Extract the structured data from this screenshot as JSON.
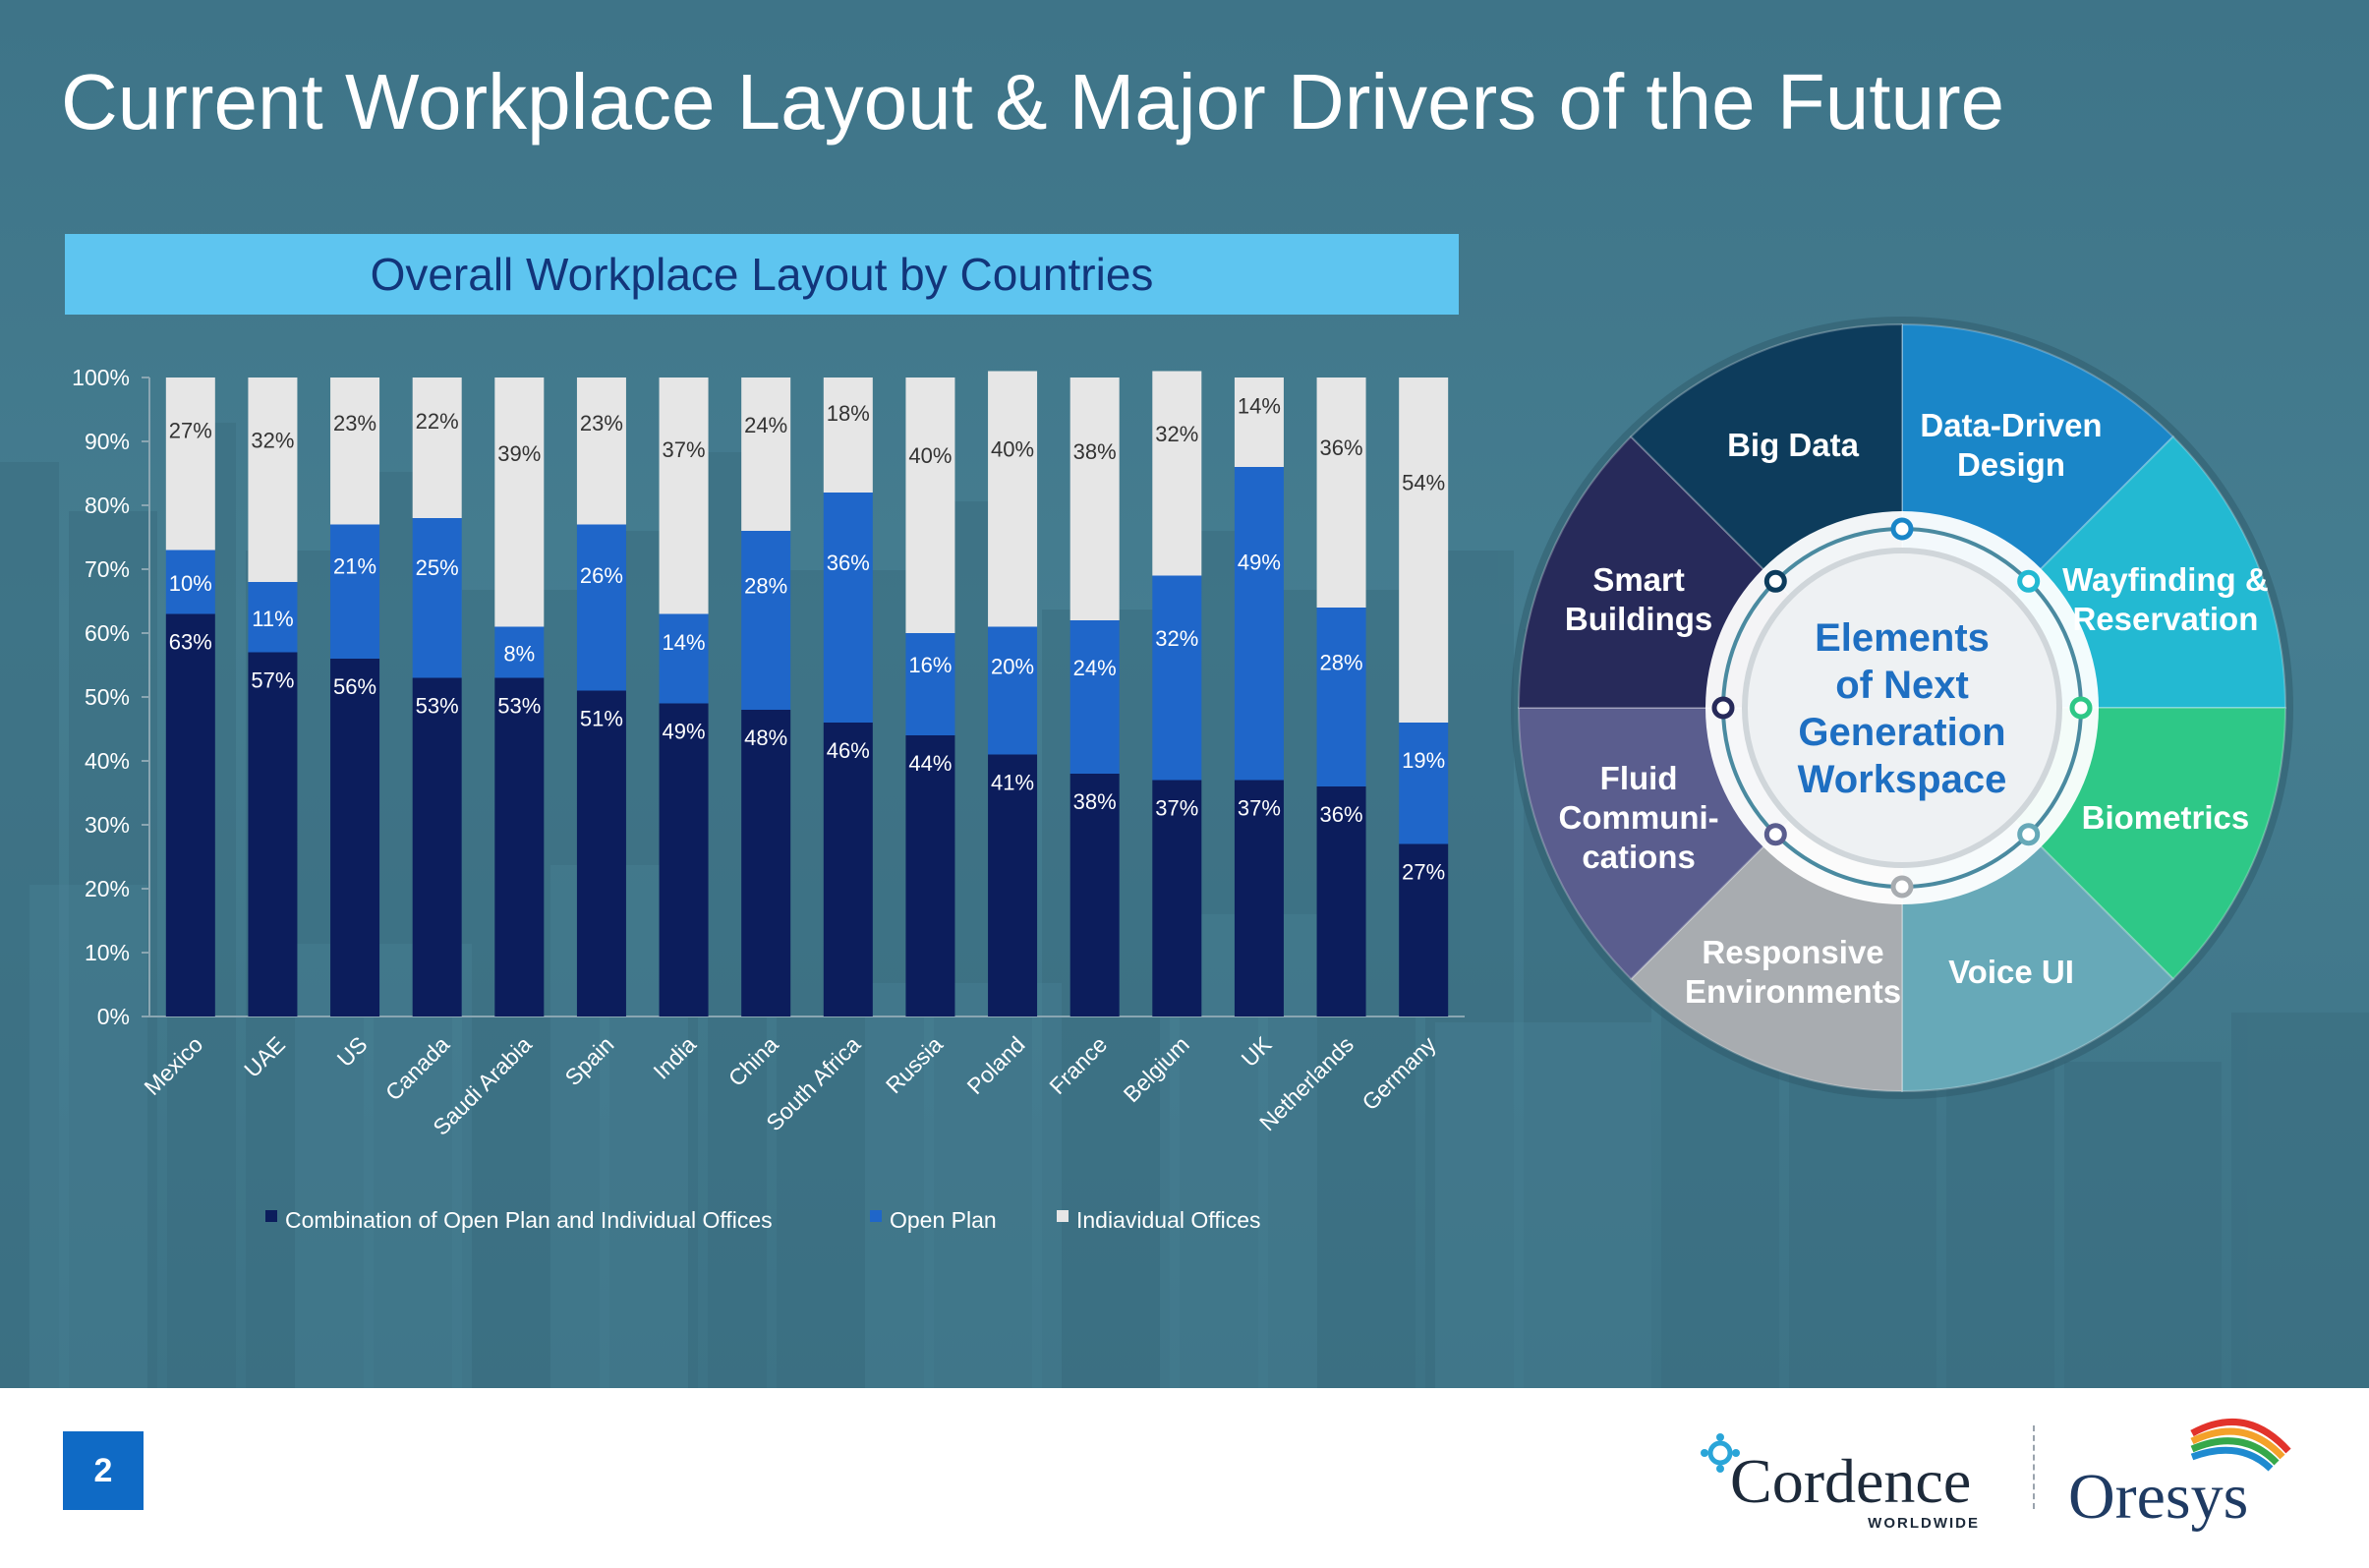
{
  "slide": {
    "title": "Current Workplace Layout & Major Drivers of the Future",
    "page_number": "2",
    "colors": {
      "background": "#437a8e",
      "banner": "#5ec5f0",
      "accent_blue": "#0f6ac5"
    }
  },
  "chart_data": {
    "type": "bar",
    "stacked": true,
    "title": "Overall  Workplace Layout by Countries",
    "xlabel": "",
    "ylabel": "",
    "ylim": [
      0,
      100
    ],
    "y_ticks": [
      "0%",
      "10%",
      "20%",
      "30%",
      "40%",
      "50%",
      "60%",
      "70%",
      "80%",
      "90%",
      "100%"
    ],
    "categories": [
      "Mexico",
      "UAE",
      "US",
      "Canada",
      "Saudi Arabia",
      "Spain",
      "India",
      "China",
      "South Africa",
      "Russia",
      "Poland",
      "France",
      "Belgium",
      "UK",
      "Netherlands",
      "Germany"
    ],
    "series": [
      {
        "name": "Combination of Open Plan and Individual Offices",
        "color": "#0c1d5c",
        "values": [
          63,
          57,
          56,
          53,
          53,
          51,
          49,
          48,
          46,
          44,
          41,
          38,
          37,
          37,
          36,
          27
        ]
      },
      {
        "name": "Open Plan",
        "color": "#1f66c9",
        "values": [
          10,
          11,
          21,
          25,
          8,
          26,
          14,
          28,
          36,
          16,
          20,
          24,
          32,
          49,
          28,
          19
        ]
      },
      {
        "name": "Indiavidual Offices",
        "color": "#e6e6e6",
        "values": [
          27,
          32,
          23,
          22,
          39,
          23,
          37,
          24,
          18,
          40,
          40,
          38,
          32,
          14,
          36,
          54
        ]
      }
    ],
    "legend_position": "bottom",
    "grid": false
  },
  "wheel": {
    "center": [
      "Elements",
      "of Next",
      "Generation",
      "Workspace"
    ],
    "segments": [
      {
        "lines": [
          "Data-Driven",
          "Design"
        ],
        "color": "#1a86c8"
      },
      {
        "lines": [
          "Wayfinding &",
          "Reservation"
        ],
        "color": "#23b9d2"
      },
      {
        "lines": [
          "Biometrics"
        ],
        "color": "#2ec887"
      },
      {
        "lines": [
          "Voice UI"
        ],
        "color": "#67a9b8"
      },
      {
        "lines": [
          "Responsive",
          "Environments"
        ],
        "color": "#a8acb0"
      },
      {
        "lines": [
          "Fluid",
          "Communi-",
          "cations"
        ],
        "color": "#5a5d8e"
      },
      {
        "lines": [
          "Smart",
          "Buildings"
        ],
        "color": "#272a5a"
      },
      {
        "lines": [
          "Big Data"
        ],
        "color": "#0d3c5c"
      }
    ]
  },
  "logos": {
    "cordence": {
      "name": "Cordence",
      "tagline": "WORLDWIDE"
    },
    "oresys": {
      "name": "Oresys"
    }
  }
}
